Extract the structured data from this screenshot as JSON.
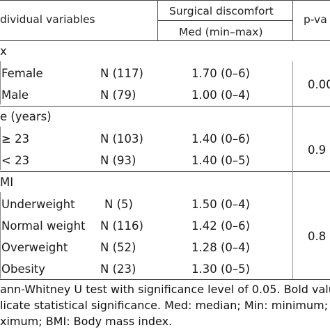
{
  "header": {
    "col1": "dividual variables",
    "group": "Surgical discomfort",
    "sub": "Med (min–max)",
    "pval": "p-va"
  },
  "sections": [
    {
      "title": "x",
      "rows": [
        {
          "label": "Female",
          "n": "N (117)",
          "med": "1.70 (0–6)"
        },
        {
          "label": "Male",
          "n": "N (79)",
          "med": "1.00 (0–4)"
        }
      ],
      "p": "0.00"
    },
    {
      "title": "e (years)",
      "rows": [
        {
          "label": "≥ 23",
          "n": "N (103)",
          "med": "1.40 (0–6)"
        },
        {
          "label": "< 23",
          "n": "N (93)",
          "med": "1.40 (0–5)"
        }
      ],
      "p": "0.9"
    },
    {
      "title": "MI",
      "rows": [
        {
          "label": "Underweight",
          "n": "N (5)",
          "med": "1.50 (0–4)"
        },
        {
          "label": "Normal weight",
          "n": "N (116)",
          "med": "1.42 (0–6)"
        },
        {
          "label": "Overweight",
          "n": "N (52)",
          "med": "1.28 (0–4)"
        },
        {
          "label": "Obesity",
          "n": "N (23)",
          "med": "1.30 (0–5)"
        }
      ],
      "p": "0.8"
    }
  ],
  "footnote": [
    "ann-Whitney U test with significance level of 0.05. Bold value",
    "licate statistical significance. Med: median; Min: minimum; M",
    "ximum; BMI: Body mass index."
  ]
}
